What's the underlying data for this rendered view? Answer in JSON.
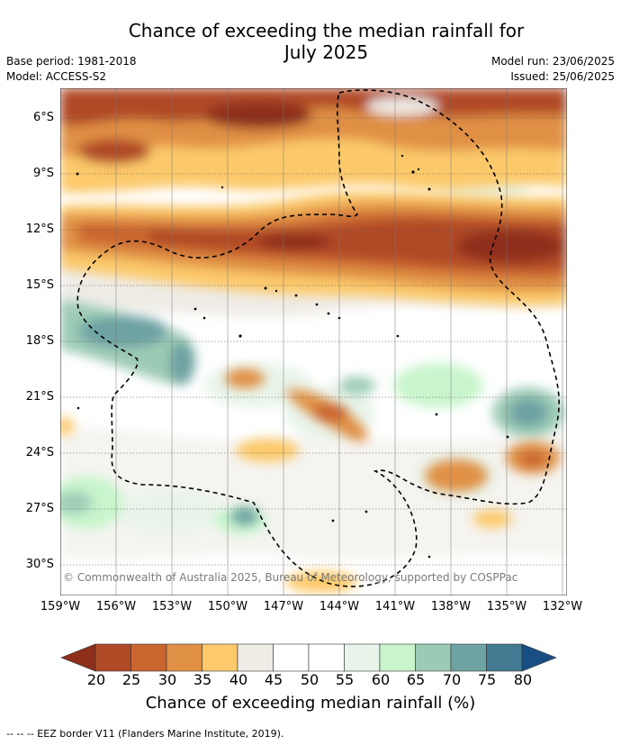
{
  "title_line1": "Chance of exceeding the median rainfall for",
  "title_line2": "July 2025",
  "meta": {
    "base_period": "Base period: 1981-2018",
    "model": "Model: ACCESS-S2",
    "model_run": "Model run: 23/06/2025",
    "issued": "Issued: 25/06/2025"
  },
  "copyright": "© Commonwealth of Australia 2025, Bureau of Meteorology, supported by COSPPac",
  "lat_labels": [
    "6°S",
    "9°S",
    "12°S",
    "15°S",
    "18°S",
    "21°S",
    "24°S",
    "27°S",
    "30°S"
  ],
  "lon_labels": [
    "159°W",
    "156°W",
    "153°W",
    "150°W",
    "147°W",
    "144°W",
    "141°W",
    "138°W",
    "135°W",
    "132°W"
  ],
  "colorbar": {
    "ticks": [
      "20",
      "25",
      "30",
      "35",
      "40",
      "45",
      "50",
      "55",
      "60",
      "65",
      "70",
      "75",
      "80"
    ],
    "colors": [
      "#8e2f1a",
      "#b04a26",
      "#c9652f",
      "#e09044",
      "#fcc96b",
      "#efece6",
      "#ffffff",
      "#ffffff",
      "#e8f4ea",
      "#c8f5cc",
      "#9ccbb5",
      "#6ea2a3",
      "#427a92",
      "#184f82"
    ],
    "title": "Chance of exceeding median rainfall (%)"
  },
  "legend_note": "--  --  -- EEZ border V11 (Flanders Marine Institute, 2019)."
}
